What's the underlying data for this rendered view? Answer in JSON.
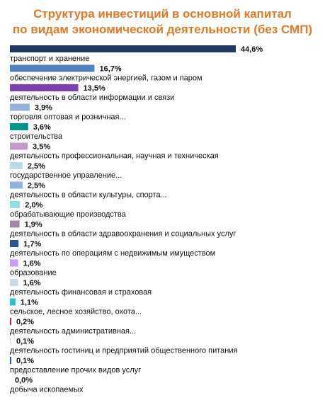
{
  "chart_data": {
    "type": "bar",
    "orientation": "horizontal",
    "title_lines": [
      "Структура инвестиций в основной капитал",
      "по видам экономической деятельности (без СМП)"
    ],
    "xlabel": "",
    "ylabel": "",
    "xlim": [
      0,
      44.6
    ],
    "value_suffix": "%",
    "grid": false,
    "legend": "none",
    "categories": [
      "транспорт и хранение",
      "обеспечение электрической энергией, газом и паром",
      "деятельность в области информации и связи",
      "торговля оптовая и розничная...",
      "строительства",
      "деятельность профессиональная, научная и техническая",
      "государственное управление...",
      "деятельность в области культуры, спорта...",
      "обрабатывающие производства",
      "деятельность в области здравоохранения и социальных услуг",
      "деятельность по операциям с недвижимым имуществом",
      "образование",
      "деятельность финансовая и страховая",
      "сельское, лесное хозяйство, охота...",
      "деятельность административная...",
      "деятельность гостиниц и предприятий общественного питания",
      "предоставление прочих видов услуг",
      "добыча ископаемых"
    ],
    "values": [
      44.6,
      16.7,
      13.5,
      3.9,
      3.6,
      3.5,
      2.5,
      2.5,
      2.0,
      1.9,
      1.7,
      1.6,
      1.6,
      1.1,
      0.2,
      0.1,
      0.1,
      0.0
    ],
    "value_labels": [
      "44,6%",
      "16,7%",
      "13,5%",
      "3,9%",
      "3,6%",
      "3,5%",
      "2,5%",
      "2,5%",
      "2,0%",
      "1,9%",
      "1,7%",
      "1,6%",
      "1,6%",
      "1,1%",
      "0,2%",
      "0,1%",
      "0,1%",
      "0,0%"
    ],
    "colors": [
      "#1f3864",
      "#4f81bd",
      "#7e3fb5",
      "#95b3d7",
      "#00968f",
      "#c39bc8",
      "#b7dde8",
      "#8db4e2",
      "#93dfe3",
      "#a08aa8",
      "#2f5496",
      "#cc99ff",
      "#c9dbe6",
      "#1ec8c8",
      "#c2185b",
      "#dfe6ee",
      "#2f5597",
      "#9aa7b5"
    ]
  }
}
